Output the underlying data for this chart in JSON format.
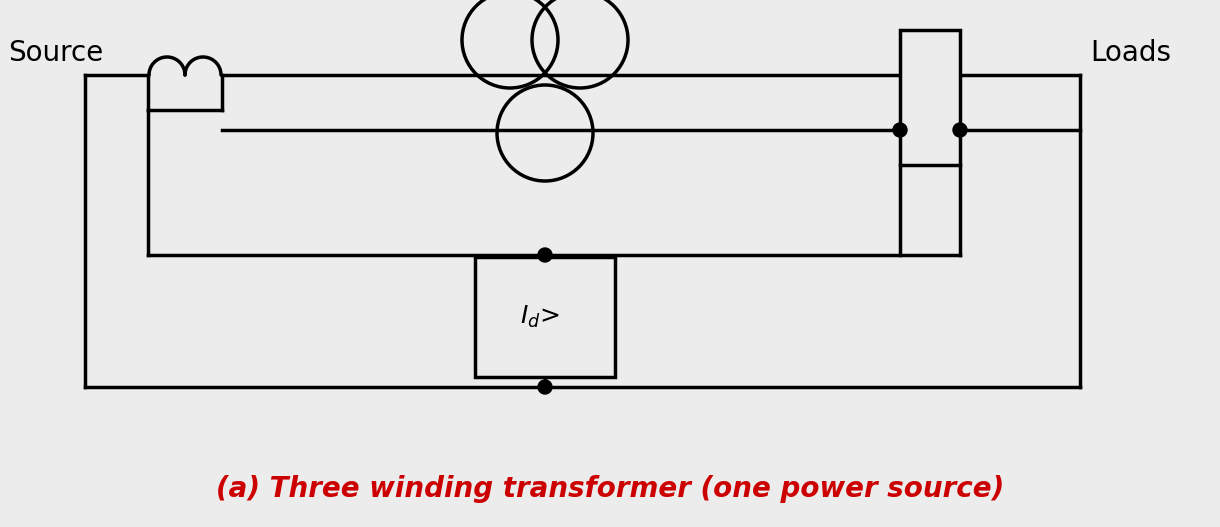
{
  "bg_color": "#ececec",
  "line_color": "black",
  "line_width": 2.5,
  "title": "(a) Three winding transformer (one power source)",
  "title_color": "#cc0000",
  "title_fontsize": 20,
  "source_label": "Source",
  "loads_label": "Loads",
  "label_fontsize": 20,
  "relay_label_fontsize": 18,
  "fig_width": 12.2,
  "fig_height": 5.27,
  "dpi": 100
}
